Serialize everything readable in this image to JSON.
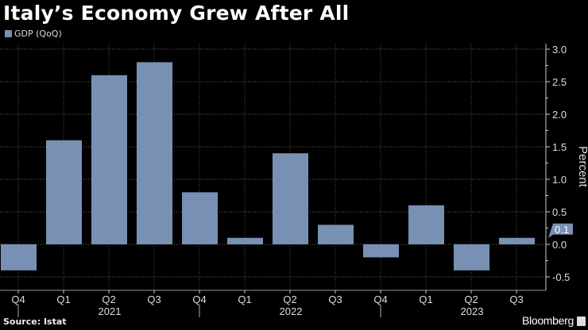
{
  "chart_data": {
    "type": "bar",
    "title": "Italy’s Economy Grew After All",
    "ylabel": "Percent",
    "ylim": [
      -0.7,
      3.1
    ],
    "yticks": [
      "3.0",
      "2.5",
      "2.0",
      "1.5",
      "1.0",
      "0.5",
      "0.0",
      "-0.5"
    ],
    "grid": true,
    "legend_position": "top-left",
    "categories": [
      "Q4",
      "Q1",
      "Q2",
      "Q3",
      "Q4",
      "Q1",
      "Q2",
      "Q3",
      "Q4",
      "Q1",
      "Q2",
      "Q3"
    ],
    "year_labels": [
      {
        "label": "2021",
        "index": 2
      },
      {
        "label": "2022",
        "index": 6
      },
      {
        "label": "2023",
        "index": 10
      }
    ],
    "series": [
      {
        "name": "GDP (QoQ)",
        "values": [
          -0.4,
          1.6,
          2.6,
          2.8,
          0.8,
          0.1,
          1.4,
          0.3,
          -0.2,
          0.6,
          -0.4,
          0.1
        ],
        "color": "#7890b4"
      }
    ],
    "last_value_label": "0.1"
  },
  "footer": {
    "source": "Source: Istat",
    "brand": "Bloomberg"
  }
}
